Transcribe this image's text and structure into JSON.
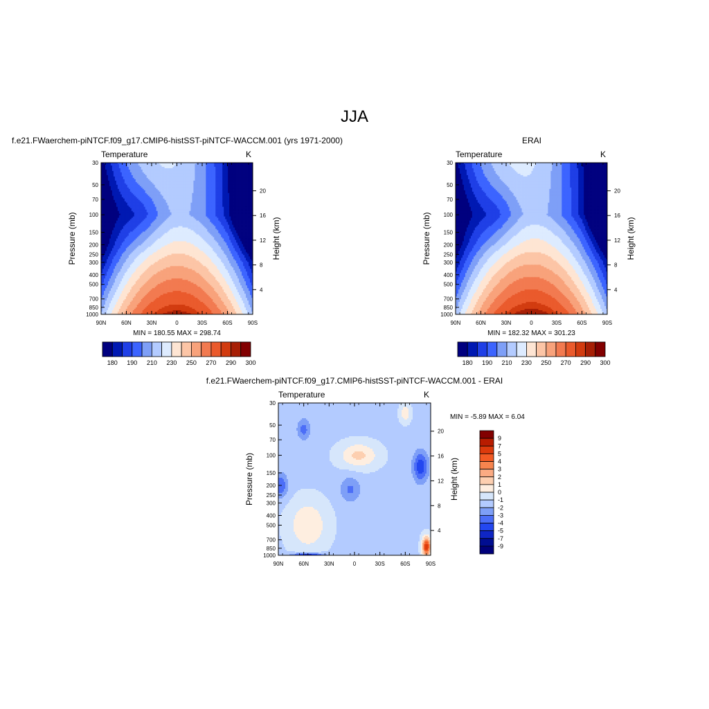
{
  "main_title": "JJA",
  "chart_data": [
    {
      "type": "heatmap",
      "title": "f.e21.FWaerchem-piNTCF.f09_g17.CMIP6-histSST-piNTCF-WACCM.001 (yrs 1971-2000)",
      "subtitle_left": "Temperature",
      "subtitle_right": "K",
      "xlabel": "",
      "ylabel": "Pressure (mb)",
      "y2label": "Height (km)",
      "x_ticks": [
        "90N",
        "60N",
        "30N",
        "0",
        "30S",
        "60S",
        "90S"
      ],
      "y_ticks": [
        30,
        50,
        70,
        100,
        150,
        200,
        250,
        300,
        400,
        500,
        700,
        850,
        1000
      ],
      "y2_ticks": [
        4,
        8,
        12,
        16,
        20
      ],
      "xlim": [
        90,
        -90
      ],
      "ylim": [
        1000,
        30
      ],
      "y_scale": "log",
      "min_max_text": "MIN = 180.55  MAX = 298.74",
      "min": 180.55,
      "max": 298.74,
      "colorbar": {
        "orientation": "horizontal",
        "labels": [
          "180",
          "190",
          "210",
          "230",
          "250",
          "270",
          "290",
          "300"
        ],
        "colors": [
          "#00007f",
          "#0019b2",
          "#1f3fe6",
          "#3c64ff",
          "#7e9ff7",
          "#b3cbff",
          "#ddebff",
          "#fee5d3",
          "#fcc5a6",
          "#f8a27b",
          "#f27a50",
          "#ea5a2c",
          "#d23b0f",
          "#a71f05",
          "#820000"
        ]
      },
      "grid": false
    },
    {
      "type": "heatmap",
      "title": "ERAI",
      "subtitle_left": "Temperature",
      "subtitle_right": "K",
      "xlabel": "",
      "ylabel": "Pressure (mb)",
      "y2label": "Height (km)",
      "x_ticks": [
        "90N",
        "60N",
        "30N",
        "0",
        "30S",
        "60S",
        "90S"
      ],
      "y_ticks": [
        30,
        50,
        70,
        100,
        150,
        200,
        250,
        300,
        400,
        500,
        700,
        850,
        1000
      ],
      "y2_ticks": [
        4,
        8,
        12,
        16,
        20
      ],
      "xlim": [
        90,
        -90
      ],
      "ylim": [
        1000,
        30
      ],
      "y_scale": "log",
      "min_max_text": "MIN = 182.32  MAX = 301.23",
      "min": 182.32,
      "max": 301.23,
      "colorbar": {
        "orientation": "horizontal",
        "labels": [
          "180",
          "190",
          "210",
          "230",
          "250",
          "270",
          "290",
          "300"
        ],
        "colors": [
          "#00007f",
          "#0019b2",
          "#1f3fe6",
          "#3c64ff",
          "#7e9ff7",
          "#b3cbff",
          "#ddebff",
          "#fee5d3",
          "#fcc5a6",
          "#f8a27b",
          "#f27a50",
          "#ea5a2c",
          "#d23b0f",
          "#a71f05",
          "#820000"
        ]
      },
      "grid": false
    },
    {
      "type": "heatmap",
      "title": "f.e21.FWaerchem-piNTCF.f09_g17.CMIP6-histSST-piNTCF-WACCM.001 - ERAI",
      "subtitle_left": "Temperature",
      "subtitle_right": "K",
      "xlabel": "",
      "ylabel": "Pressure (mb)",
      "y2label": "Height (km)",
      "x_ticks": [
        "90N",
        "60N",
        "30N",
        "0",
        "30S",
        "60S",
        "90S"
      ],
      "y_ticks": [
        30,
        50,
        70,
        100,
        150,
        200,
        250,
        300,
        400,
        500,
        700,
        850,
        1000
      ],
      "y2_ticks": [
        4,
        8,
        12,
        16,
        20
      ],
      "xlim": [
        90,
        -90
      ],
      "ylim": [
        1000,
        30
      ],
      "y_scale": "log",
      "min_max_text": "MIN =  -5.89  MAX =   6.04",
      "min": -5.89,
      "max": 6.04,
      "colorbar": {
        "orientation": "vertical",
        "labels": [
          "9",
          "7",
          "5",
          "4",
          "3",
          "2",
          "1",
          "0",
          "-1",
          "-2",
          "-3",
          "-4",
          "-5",
          "-7",
          "-9"
        ],
        "colors": [
          "#820000",
          "#b81c00",
          "#dc3a0c",
          "#f25a24",
          "#f7844e",
          "#fbab83",
          "#fdcfb0",
          "#feeee0",
          "#d6e6fb",
          "#b3cbff",
          "#7e9ff7",
          "#4c6ef7",
          "#2347f0",
          "#0f26c4",
          "#000d91",
          "#00007a"
        ]
      },
      "grid": false
    }
  ]
}
